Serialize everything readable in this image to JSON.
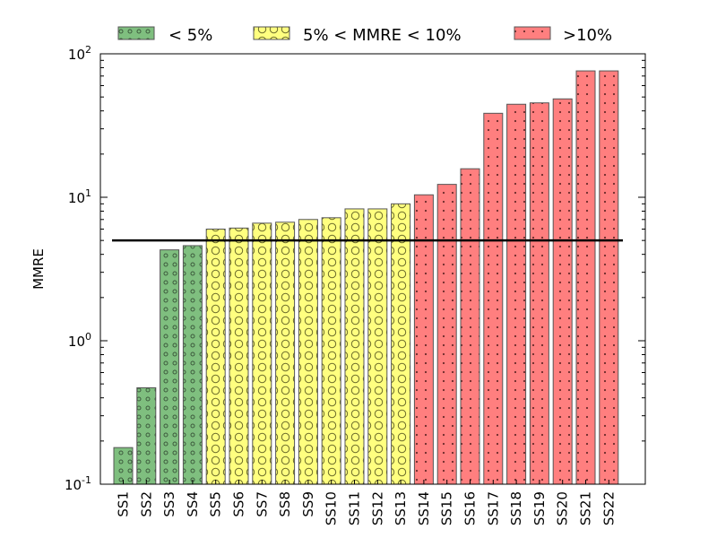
{
  "chart_data": {
    "type": "bar",
    "ylabel": "MMRE",
    "y_scale": "log",
    "ylim": [
      0.1,
      100
    ],
    "y_ticks": [
      {
        "value": 0.1,
        "base": "10",
        "exp": "-1"
      },
      {
        "value": 1,
        "base": "10",
        "exp": "0"
      },
      {
        "value": 10,
        "base": "10",
        "exp": "1"
      },
      {
        "value": 100,
        "base": "10",
        "exp": "2"
      }
    ],
    "categories": [
      "SS1",
      "SS2",
      "SS3",
      "SS4",
      "SS5",
      "SS6",
      "SS7",
      "SS8",
      "SS9",
      "SS10",
      "SS11",
      "SS12",
      "SS13",
      "SS14",
      "SS15",
      "SS16",
      "SS17",
      "SS18",
      "SS19",
      "SS20",
      "SS21",
      "SS22"
    ],
    "values": [
      0.18,
      0.47,
      4.3,
      4.6,
      6.0,
      6.1,
      6.6,
      6.7,
      7.0,
      7.2,
      8.3,
      8.3,
      9.0,
      10.4,
      12.3,
      15.8,
      38.5,
      44.5,
      45.5,
      48.5,
      76,
      76
    ],
    "groups": [
      0,
      0,
      0,
      0,
      1,
      1,
      1,
      1,
      1,
      1,
      1,
      1,
      1,
      2,
      2,
      2,
      2,
      2,
      2,
      2,
      2,
      2
    ],
    "threshold": 5,
    "legend": {
      "placement": "top, outside plot",
      "items": [
        {
          "label": "< 5%",
          "color": "#7fbf7f",
          "pattern": "small circles"
        },
        {
          "label": "5% < MMRE < 10%",
          "color": "#ffff7f",
          "pattern": "large rings"
        },
        {
          "label": ">10%",
          "color": "#ff7f7f",
          "pattern": "dots"
        }
      ]
    },
    "grid": false
  }
}
